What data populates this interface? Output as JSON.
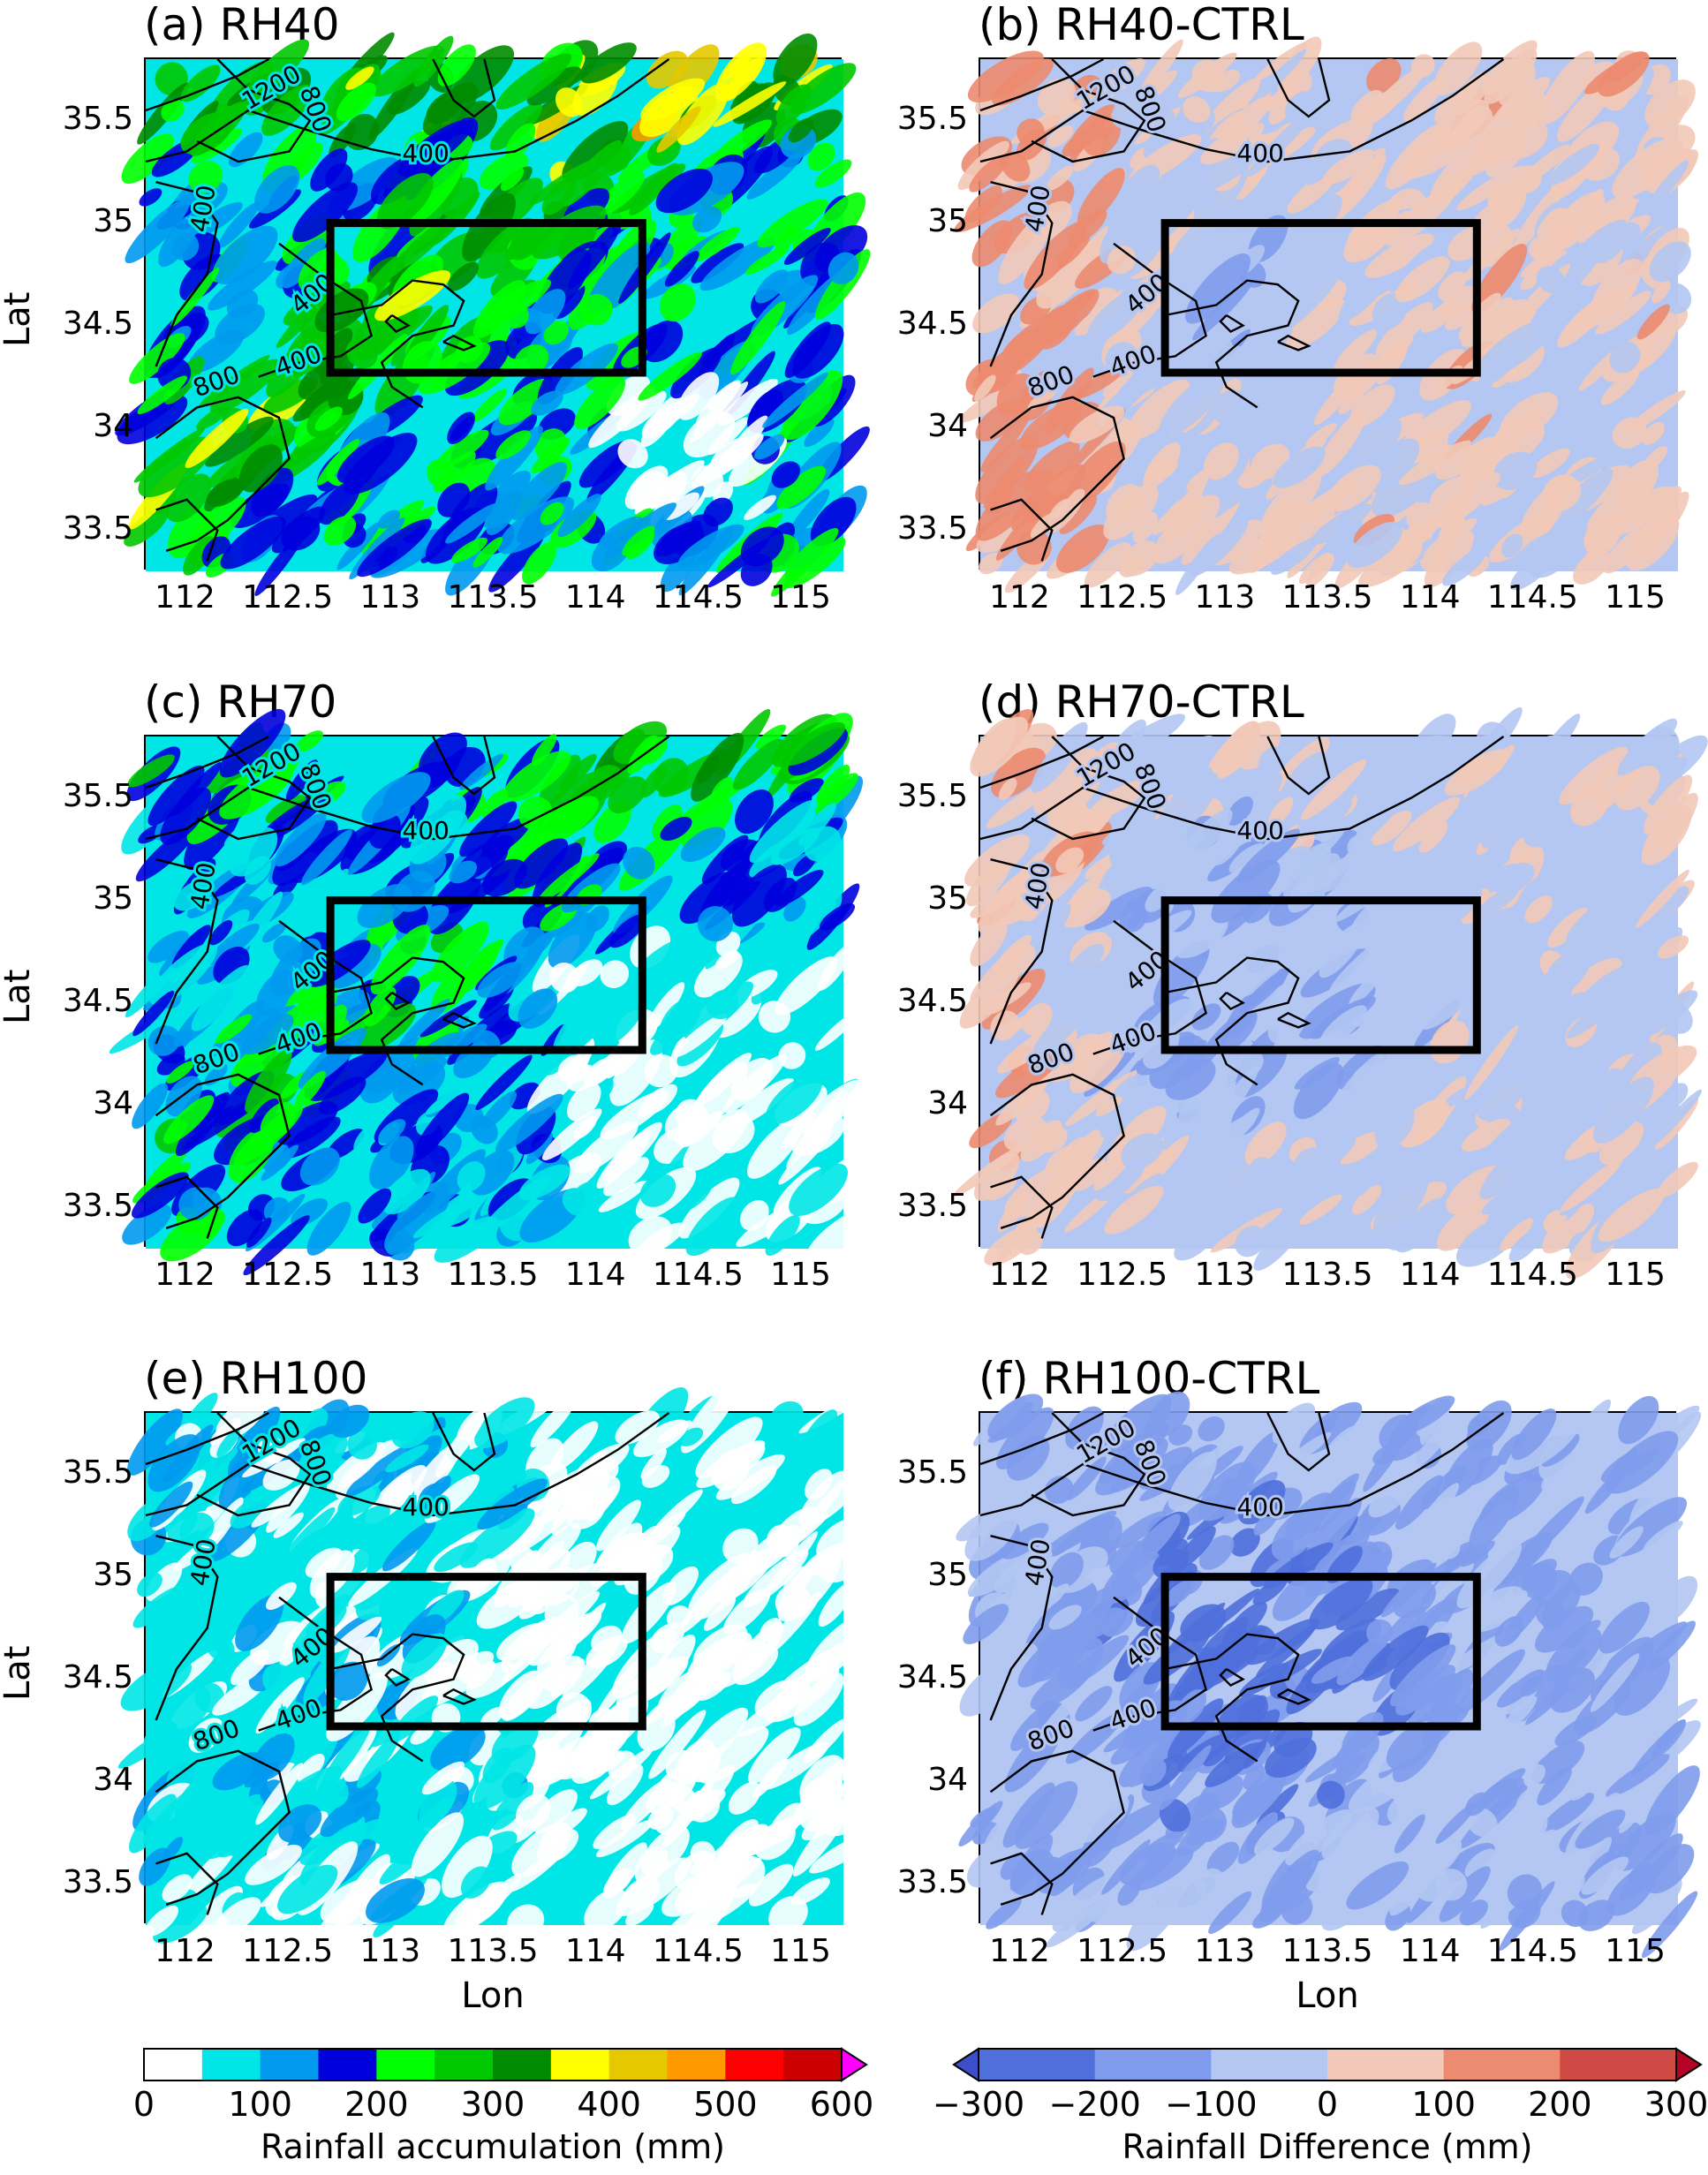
{
  "panels": [
    {
      "id": "a",
      "title": "(a) RH40",
      "kind": "rain",
      "level": "heavy"
    },
    {
      "id": "b",
      "title": "(b) RH40-CTRL",
      "kind": "diff",
      "level": "mild"
    },
    {
      "id": "c",
      "title": "(c) RH70",
      "kind": "rain",
      "level": "medium"
    },
    {
      "id": "d",
      "title": "(d) RH70-CTRL",
      "kind": "diff",
      "level": "moderate"
    },
    {
      "id": "e",
      "title": "(e) RH100",
      "kind": "rain",
      "level": "light"
    },
    {
      "id": "f",
      "title": "(f) RH100-CTRL",
      "kind": "diff",
      "level": "strong"
    }
  ],
  "axes": {
    "xlabel": "Lon",
    "ylabel": "Lat",
    "x_ticks": [
      "112",
      "112.5",
      "113",
      "113.5",
      "114",
      "114.5",
      "115"
    ],
    "y_ticks": [
      "35.5",
      "35",
      "34.5",
      "34",
      "33.5"
    ],
    "xlim": [
      111.8,
      115.2
    ],
    "ylim": [
      33.3,
      35.8
    ]
  },
  "box_region": {
    "lon": [
      112.7,
      114.22
    ],
    "lat": [
      34.27,
      35.0
    ]
  },
  "contour_labels": [
    "1200",
    "800",
    "400",
    "400",
    "400",
    "400",
    "800"
  ],
  "colorbars": {
    "rain": {
      "label": "Rainfall accumulation (mm)",
      "tick_labels": [
        "0",
        "100",
        "200",
        "300",
        "400",
        "500",
        "600"
      ],
      "bounds": [
        0,
        50,
        100,
        150,
        200,
        250,
        300,
        350,
        400,
        450,
        500,
        550,
        600
      ],
      "colors": [
        "#ffffff",
        "#00e6e6",
        "#0099ee",
        "#0000dd",
        "#00ff00",
        "#00c800",
        "#008c00",
        "#ffff00",
        "#e6c800",
        "#ff9900",
        "#ff0000",
        "#cc0000"
      ],
      "extend_color": "#ff00ff"
    },
    "diff": {
      "label": "Rainfall Difference (mm)",
      "tick_labels": [
        "−300",
        "−200",
        "−100",
        "0",
        "100",
        "200",
        "300"
      ],
      "bounds": [
        -300,
        -200,
        -100,
        0,
        100,
        200,
        300
      ],
      "colors": [
        "#4f6fdb",
        "#7f9cec",
        "#b3c7f2",
        "#f2c9b8",
        "#ec8b6f",
        "#d04a45"
      ],
      "extend_low": "#3c4fc8",
      "extend_high": "#b40426"
    }
  }
}
